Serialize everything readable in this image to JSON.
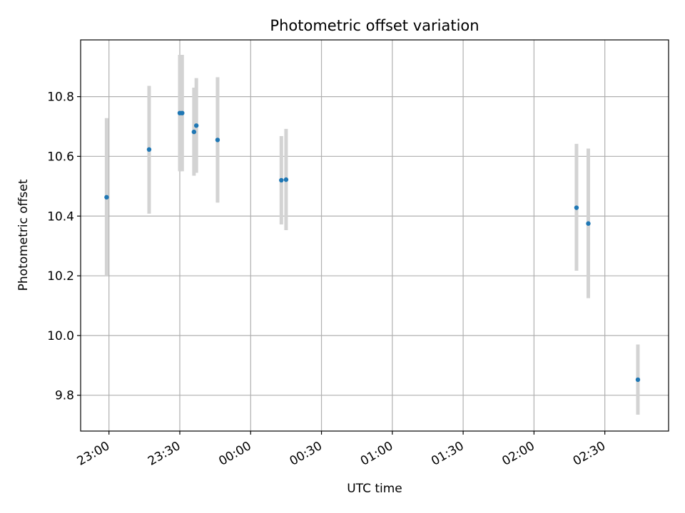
{
  "chart_data": {
    "type": "scatter",
    "title": "Photometric offset variation",
    "xlabel": "UTC time",
    "ylabel": "Photometric offset",
    "xlim": [
      "22:48",
      "02:57"
    ],
    "ylim": [
      9.68,
      10.99
    ],
    "x_ticks": [
      "23:00",
      "23:30",
      "00:00",
      "00:30",
      "01:00",
      "01:30",
      "02:00",
      "02:30"
    ],
    "y_ticks": [
      9.8,
      10.0,
      10.2,
      10.4,
      10.6,
      10.8
    ],
    "y_tick_labels": [
      "9.8",
      "10.0",
      "10.2",
      "10.4",
      "10.6",
      "10.8"
    ],
    "grid": true,
    "colors": {
      "point": "#1f77b4",
      "errorbar": "#d3d3d3",
      "grid": "#b0b0b0"
    },
    "series": [
      {
        "points": [
          {
            "x": "22:59",
            "y": 10.463,
            "ylow": 10.2,
            "yhigh": 10.728
          },
          {
            "x": "23:17",
            "y": 10.623,
            "ylow": 10.408,
            "yhigh": 10.836
          },
          {
            "x": "23:30",
            "y": 10.745,
            "ylow": 10.55,
            "yhigh": 10.94
          },
          {
            "x": "23:31",
            "y": 10.745,
            "ylow": 10.55,
            "yhigh": 10.94
          },
          {
            "x": "23:36",
            "y": 10.682,
            "ylow": 10.535,
            "yhigh": 10.83
          },
          {
            "x": "23:37",
            "y": 10.703,
            "ylow": 10.545,
            "yhigh": 10.862
          },
          {
            "x": "23:46",
            "y": 10.655,
            "ylow": 10.445,
            "yhigh": 10.865
          },
          {
            "x": "00:13",
            "y": 10.52,
            "ylow": 10.372,
            "yhigh": 10.668
          },
          {
            "x": "00:15",
            "y": 10.522,
            "ylow": 10.353,
            "yhigh": 10.692
          },
          {
            "x": "02:18",
            "y": 10.428,
            "ylow": 10.217,
            "yhigh": 10.642
          },
          {
            "x": "02:23",
            "y": 10.375,
            "ylow": 10.125,
            "yhigh": 10.626
          },
          {
            "x": "02:44",
            "y": 9.852,
            "ylow": 9.735,
            "yhigh": 9.97
          }
        ]
      }
    ]
  }
}
